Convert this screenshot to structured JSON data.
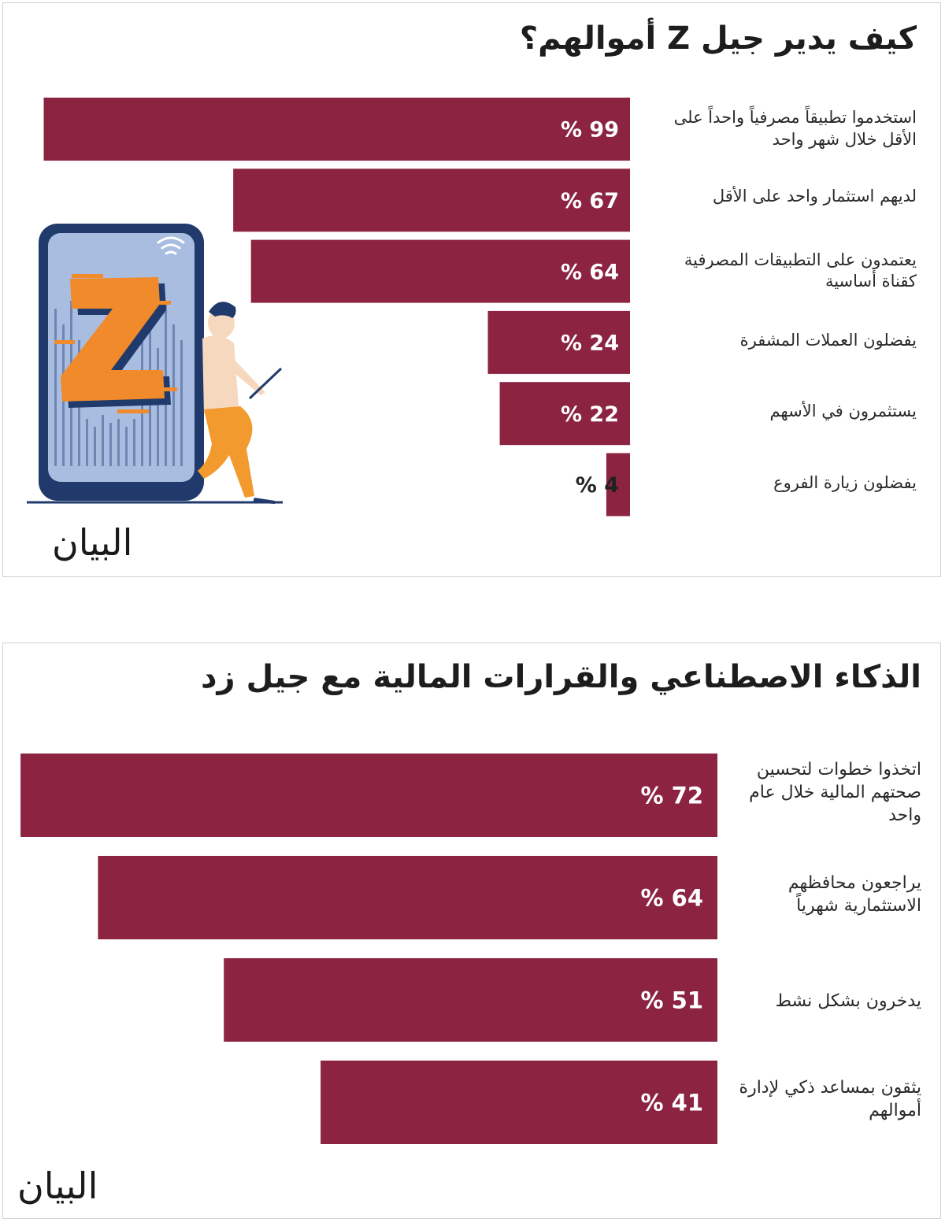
{
  "panel1": {
    "title": "كيف يدير جيل Z أموالهم؟",
    "logo_text": "البيان",
    "chart_data": {
      "type": "bar",
      "orientation": "horizontal",
      "unit": "%",
      "xlim": [
        0,
        100
      ],
      "categories": [
        "استخدموا تطبيقاً مصرفياً واحداً على الأقل خلال شهر واحد",
        "لديهم استثمار واحد على الأقل",
        "يعتمدون على التطبيقات المصرفية كقناة أساسية",
        "يفضلون العملات المشفرة",
        "يستثمرون في الأسهم",
        "يفضلون زيارة الفروع"
      ],
      "values": [
        99,
        67,
        64,
        24,
        22,
        4
      ],
      "value_labels": [
        "% 99",
        "% 67",
        "% 64",
        "% 24",
        "% 22",
        "% 4"
      ],
      "bar_color": "#8b2341"
    }
  },
  "panel2": {
    "title": "الذكاء الاصطناعي والقرارات المالية مع جيل زد",
    "logo_text": "البيان",
    "chart_data": {
      "type": "bar",
      "orientation": "horizontal",
      "unit": "%",
      "xlim": [
        0,
        100
      ],
      "categories": [
        "اتخذوا خطوات لتحسين صحتهم المالية خلال عام واحد",
        "يراجعون محافظهم الاستثمارية شهرياً",
        "يدخرون بشكل نشط",
        "يثقون بمساعد ذكي لإدارة أموالهم"
      ],
      "values": [
        72,
        64,
        51,
        41
      ],
      "value_labels": [
        "% 72",
        "% 64",
        "% 51",
        "% 41"
      ],
      "bar_color": "#8b2341"
    }
  },
  "illustration": {
    "description_icon": "phone-with-z-and-person-laptop",
    "phone_color": "#1f3a6b",
    "screen_color": "#a9bde0",
    "z_color": "#f08a2a",
    "person_pants": "#f39a2e",
    "person_shirt": "#f6d8bf",
    "person_hair": "#1f3a6b"
  }
}
